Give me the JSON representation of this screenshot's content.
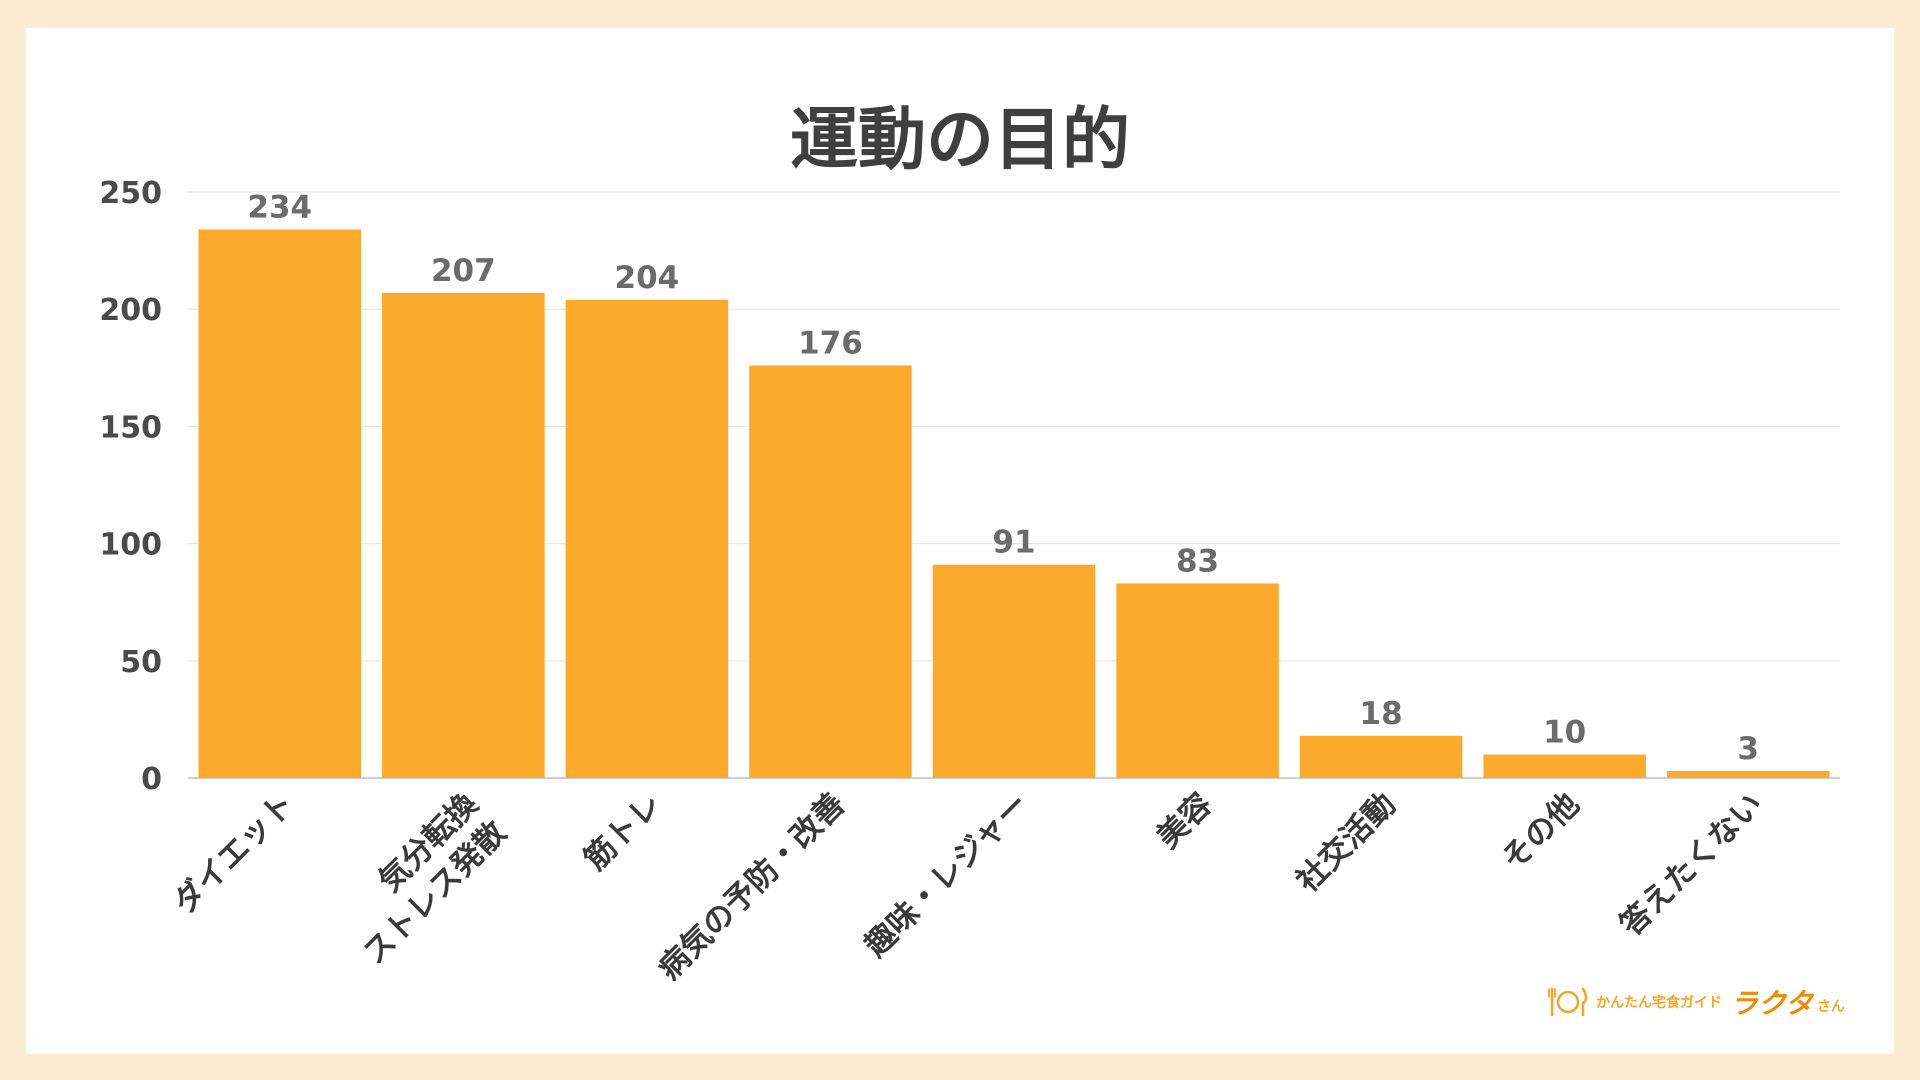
{
  "chart_data": {
    "type": "bar",
    "title": "運動の目的",
    "categories": [
      "ダイエット",
      "気分転換\nストレス発散",
      "筋トレ",
      "病気の予防・改善",
      "趣味・レジャー",
      "美容",
      "社交活動",
      "その他",
      "答えたくない"
    ],
    "values": [
      234,
      207,
      204,
      176,
      91,
      83,
      18,
      10,
      3
    ],
    "ylim": [
      0,
      250
    ],
    "yticks": [
      0,
      50,
      100,
      150,
      200,
      250
    ],
    "bar_color": "#fbaa2c",
    "grid": true,
    "xlabel": "",
    "ylabel": ""
  },
  "logo": {
    "sub_text": "かんたん宅食ガイド",
    "main_text": "ラクタ",
    "tail_text": "さん",
    "icon": "plate-fork-knife-icon",
    "color": "#f5a623"
  }
}
